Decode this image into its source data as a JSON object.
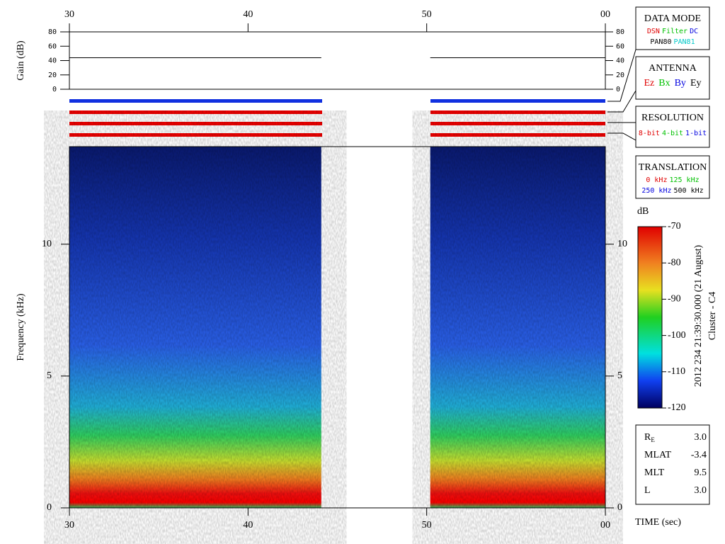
{
  "chart_data": [
    {
      "type": "line",
      "ylabel": "Gain (dB)",
      "xlim": [
        30,
        60
      ],
      "xticks": [
        30,
        40,
        50,
        {
          "value": 60,
          "label": "00"
        }
      ],
      "ylim": [
        0,
        80
      ],
      "yticks": [
        0,
        20,
        40,
        60,
        80
      ],
      "series": [
        {
          "color": "#000000",
          "x": [
            30,
            44.1,
            null,
            50.2,
            60
          ],
          "values": [
            44,
            44,
            null,
            44,
            44
          ]
        }
      ]
    },
    {
      "type": "heatmap",
      "ylabel": "Frequency (kHz)",
      "xlabel": "TIME (sec)",
      "xlim": [
        30,
        60
      ],
      "xticks": [
        30,
        40,
        50,
        {
          "value": 60,
          "label": "00"
        }
      ],
      "ylim": [
        0,
        13.7
      ],
      "yticks": [
        0,
        5,
        10
      ],
      "data_intervals": [
        [
          30,
          44.1
        ],
        [
          50.2,
          60
        ]
      ]
    },
    {
      "type": "colorbar",
      "title": "dB",
      "ylim": [
        -120,
        -70
      ],
      "yticks": [
        -70,
        -80,
        -90,
        -100,
        -110,
        -120
      ]
    }
  ],
  "sidebar": [
    {
      "title": "DATA MODE",
      "rows": [
        [
          {
            "text": "DSN",
            "color": "#e00000"
          },
          {
            "text": "Filter",
            "color": "#00c000"
          },
          {
            "text": "DC",
            "color": "#0000e0"
          }
        ],
        [
          {
            "text": "PAN80",
            "color": "#000000"
          },
          {
            "text": "PAN81",
            "color": "#00c8c8"
          }
        ]
      ]
    },
    {
      "title": "ANTENNA",
      "rows": [
        [
          {
            "text": "Ez",
            "color": "#e00000"
          },
          {
            "text": "Bx",
            "color": "#00c000"
          },
          {
            "text": "By",
            "color": "#0000e0"
          },
          {
            "text": "Ey",
            "color": "#000000"
          }
        ]
      ]
    },
    {
      "title": "RESOLUTION",
      "rows": [
        [
          {
            "text": "8-bit",
            "color": "#e00000"
          },
          {
            "text": "4-bit",
            "color": "#00c000"
          },
          {
            "text": "1-bit",
            "color": "#0000e0"
          }
        ]
      ]
    },
    {
      "title": "TRANSLATION",
      "rows": [
        [
          {
            "text": "0 kHz",
            "color": "#e00000"
          },
          {
            "text": "125 kHz",
            "color": "#00c000"
          }
        ],
        [
          {
            "text": "250 kHz",
            "color": "#0000e0"
          },
          {
            "text": "500 kHz",
            "color": "#000000"
          }
        ]
      ]
    }
  ],
  "caption": {
    "date": "2012 234 21:39:30.000 (21 August)",
    "mission": "Cluster - C4"
  },
  "ephemeris": [
    {
      "label": "R",
      "sub": "E",
      "value": "3.0"
    },
    {
      "label": "MLAT",
      "value": "-3.4"
    },
    {
      "label": "MLT",
      "value": "9.5"
    },
    {
      "label": "L",
      "value": "3.0"
    }
  ]
}
